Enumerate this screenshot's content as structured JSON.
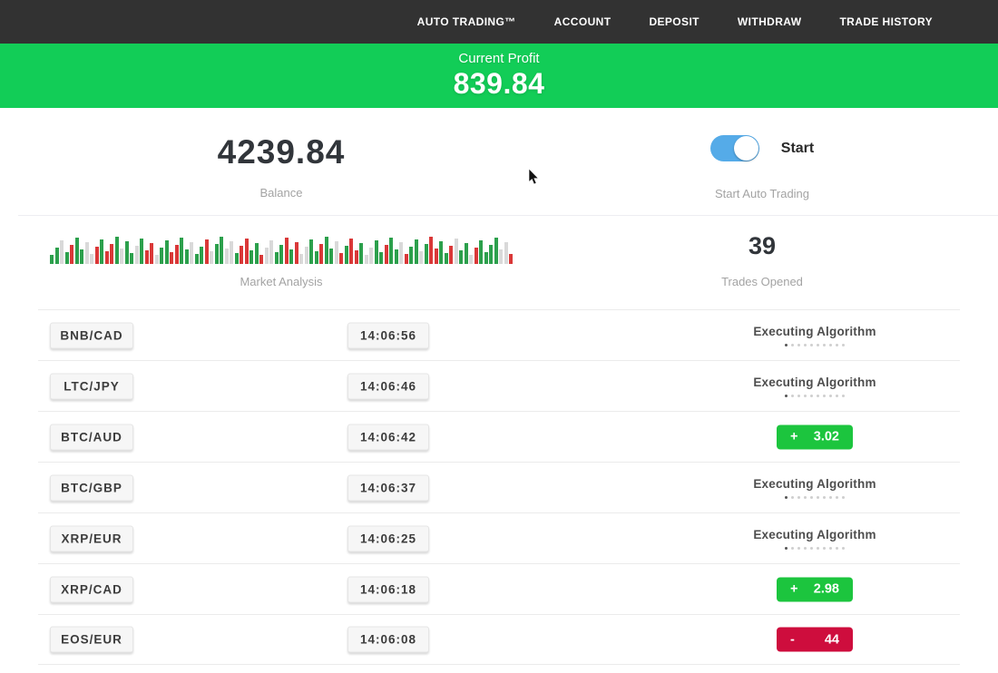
{
  "nav": {
    "items": [
      "AUTO TRADING™",
      "ACCOUNT",
      "DEPOSIT",
      "WITHDRAW",
      "TRADE HISTORY"
    ]
  },
  "banner": {
    "label": "Current Profit",
    "value": "839.84"
  },
  "balance": {
    "value": "4239.84",
    "label": "Balance"
  },
  "auto_trading": {
    "toggle_state": "on",
    "toggle_label": "Start",
    "caption": "Start Auto Trading"
  },
  "market_analysis": {
    "caption": "Market Analysis",
    "bars_pattern": "gglgrggllrgrrglgglgrrlggrrgglggrlggllgrrggrllggrgrllggrgglrgrrgllggrgglrgglgrrggrlgglrggggllr"
  },
  "trades_opened": {
    "value": "39",
    "caption": "Trades Opened"
  },
  "trades": [
    {
      "pair": "BNB/CAD",
      "time": "14:06:56",
      "status": "executing",
      "status_label": "Executing Algorithm"
    },
    {
      "pair": "LTC/JPY",
      "time": "14:06:46",
      "status": "executing",
      "status_label": "Executing Algorithm"
    },
    {
      "pair": "BTC/AUD",
      "time": "14:06:42",
      "status": "win",
      "sign": "+",
      "amount": "3.02"
    },
    {
      "pair": "BTC/GBP",
      "time": "14:06:37",
      "status": "executing",
      "status_label": "Executing Algorithm"
    },
    {
      "pair": "XRP/EUR",
      "time": "14:06:25",
      "status": "executing",
      "status_label": "Executing Algorithm"
    },
    {
      "pair": "XRP/CAD",
      "time": "14:06:18",
      "status": "win",
      "sign": "+",
      "amount": "2.98"
    },
    {
      "pair": "EOS/EUR",
      "time": "14:06:08",
      "status": "loss",
      "sign": "-",
      "amount": "44"
    }
  ],
  "colors": {
    "nav_dark": "#323232",
    "banner_green": "#12cd57",
    "win_green": "#1cc53e",
    "loss_red": "#ce0d3d",
    "toggle_blue": "#55abe8",
    "chart_green": "#2ca04c",
    "chart_red": "#da3838",
    "chart_neutral": "#d9d9d9"
  }
}
